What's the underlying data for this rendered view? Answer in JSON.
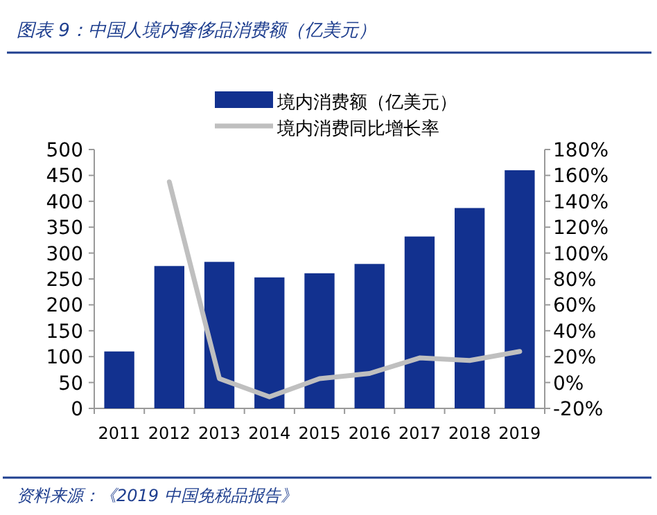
{
  "chart_data": {
    "type": "bar",
    "title": "图表 9：中国人境内奢侈品消费额（亿美元）",
    "categories": [
      "2011",
      "2012",
      "2013",
      "2014",
      "2015",
      "2016",
      "2017",
      "2018",
      "2019"
    ],
    "series": [
      {
        "name": "境内消费额（亿美元）",
        "color": "#12318f",
        "values": [
          110,
          275,
          283,
          253,
          261,
          279,
          332,
          387,
          460
        ]
      },
      {
        "name": "境内消费同比增长率",
        "type": "line",
        "axis": "y2",
        "color": "#bfbfbf",
        "values": [
          null,
          155,
          3,
          -11,
          3,
          7,
          19,
          17,
          24
        ]
      }
    ],
    "ylim": [
      0,
      500
    ],
    "yticks": [
      0,
      50,
      100,
      150,
      200,
      250,
      300,
      350,
      400,
      450,
      500
    ],
    "y2lim": [
      -20,
      180
    ],
    "y2ticks": [
      {
        "value": -20,
        "label": "-20%"
      },
      {
        "value": 0,
        "label": "0%"
      },
      {
        "value": 20,
        "label": "20%"
      },
      {
        "value": 40,
        "label": "40%"
      },
      {
        "value": 60,
        "label": "60%"
      },
      {
        "value": 80,
        "label": "80%"
      },
      {
        "value": 100,
        "label": "100%"
      },
      {
        "value": 120,
        "label": "120%"
      },
      {
        "value": 140,
        "label": "140%"
      },
      {
        "value": 160,
        "label": "160%"
      },
      {
        "value": 180,
        "label": "180%"
      }
    ],
    "legend": "top",
    "grid": false,
    "annotations": [
      "资料来源：《2019 中国免税品报告》"
    ]
  }
}
